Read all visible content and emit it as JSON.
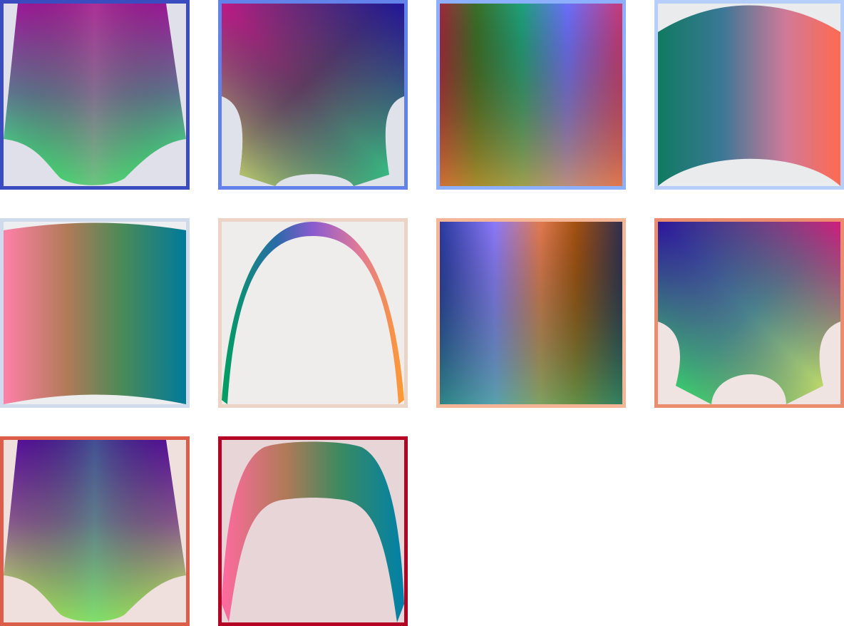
{
  "tiles": [
    {
      "border": "#3b4cc0",
      "bg": "#dfe0ea"
    },
    {
      "border": "#6282ea",
      "bg": "#e0e2ea"
    },
    {
      "border": "#8db0fe",
      "bg": "#e6e8eb"
    },
    {
      "border": "#b6cefa",
      "bg": "#e9ebed"
    },
    {
      "border": "#cfdaea",
      "bg": "#eceeef"
    },
    {
      "border": "#ecd3c5",
      "bg": "#efedeb"
    },
    {
      "border": "#f5b597",
      "bg": "#efe6e1"
    },
    {
      "border": "#ec8c6f",
      "bg": "#efe4e1"
    },
    {
      "border": "#dc5d4a",
      "bg": "#efe0dd"
    },
    {
      "border": "#b40426",
      "bg": "#e8d5d8"
    }
  ]
}
